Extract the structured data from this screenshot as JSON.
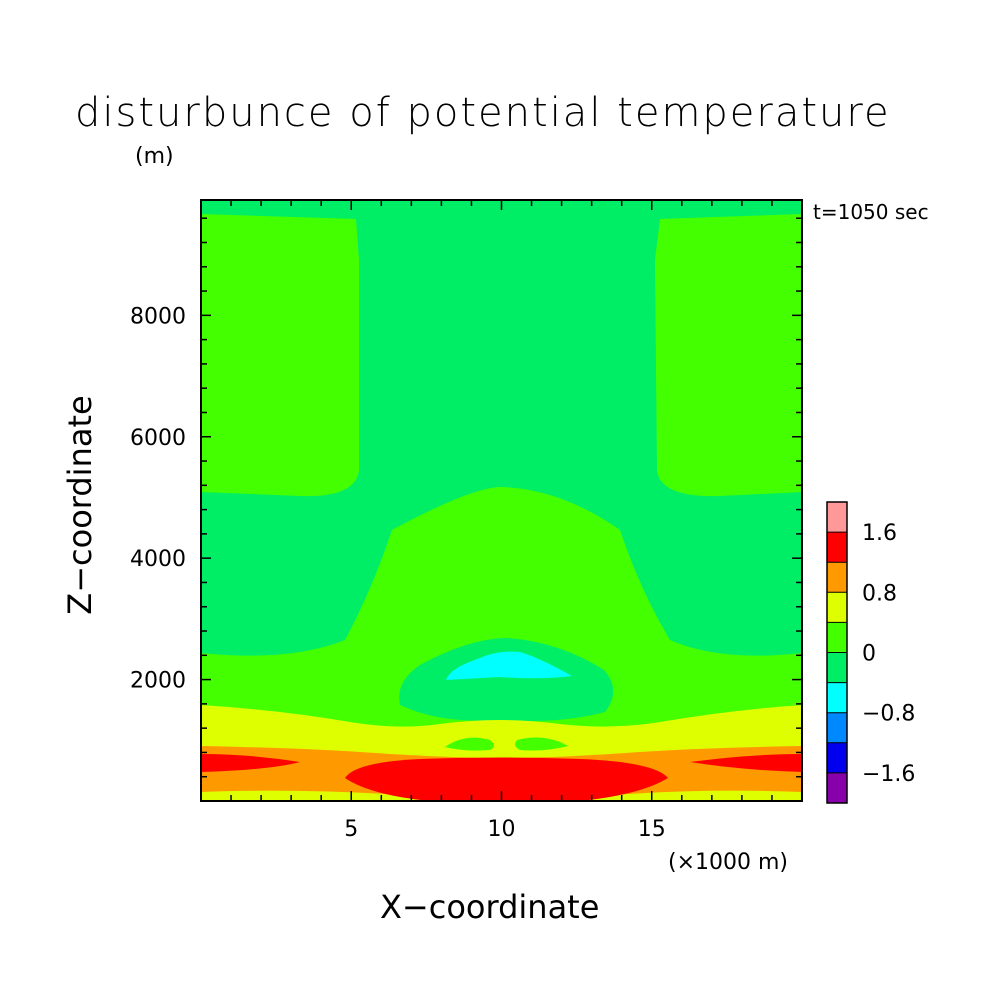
{
  "chart_data": {
    "type": "heatmap",
    "title": "disturbunce of potential temperature",
    "ylabel_unit": "(m)",
    "annotation": "t=1050 sec",
    "xlabel": "X−coordinate",
    "xlabel_unit": "(×1000 m)",
    "ylabel": "Z−coordinate",
    "xlim": [
      0,
      20
    ],
    "ylim": [
      0,
      9900
    ],
    "x_ticks": [
      5,
      10,
      15
    ],
    "y_ticks": [
      2000,
      4000,
      6000,
      8000
    ],
    "colorbar": {
      "levels": [
        -2.0,
        -1.6,
        -1.2,
        -0.8,
        -0.4,
        0,
        0.4,
        0.8,
        1.2,
        1.6,
        2.0
      ],
      "colors": [
        "#8800aa",
        "#0000ee",
        "#0088ff",
        "#00ffff",
        "#00ee66",
        "#44ff00",
        "#ddff00",
        "#ff9900",
        "#ff0000",
        "#ff9999"
      ],
      "tick_labels": [
        "−1.6",
        "−0.8",
        "0",
        "0.8",
        "1.6"
      ],
      "tick_values": [
        -1.6,
        -0.8,
        0,
        0.8,
        1.6
      ]
    },
    "regions": [
      {
        "name": "background",
        "range": [
          -0.4,
          0
        ]
      },
      {
        "name": "upper-left-lobe",
        "range": [
          0,
          0.4
        ]
      },
      {
        "name": "upper-right-lobe",
        "range": [
          0,
          0.4
        ]
      },
      {
        "name": "lower-plume",
        "range": [
          0,
          0.4
        ]
      },
      {
        "name": "mid-negative-dome",
        "range": [
          -0.4,
          0
        ]
      },
      {
        "name": "cold-core",
        "range": [
          -0.8,
          -0.4
        ]
      },
      {
        "name": "warm-band",
        "range": [
          0.4,
          0.8
        ]
      },
      {
        "name": "hot-band",
        "range": [
          0.8,
          1.2
        ]
      },
      {
        "name": "hot-core",
        "range": [
          1.2,
          1.6
        ]
      }
    ]
  }
}
